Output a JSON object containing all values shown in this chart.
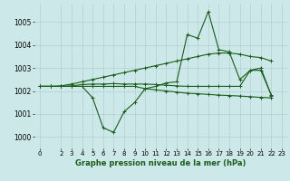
{
  "bg_color": "#cce8e8",
  "line_color": "#1a5c1a",
  "grid_color": "#b0d0d0",
  "xlabel": "Graphe pression niveau de la mer (hPa)",
  "ylim": [
    999.5,
    1005.8
  ],
  "yticks": [
    1000,
    1001,
    1002,
    1003,
    1004,
    1005
  ],
  "xticks": [
    0,
    2,
    3,
    4,
    5,
    6,
    7,
    8,
    9,
    10,
    11,
    12,
    13,
    14,
    15,
    16,
    17,
    18,
    19,
    20,
    21,
    22,
    23
  ],
  "xlim": [
    -0.5,
    23.5
  ],
  "series": [
    [
      1002.2,
      1002.2,
      1002.2,
      1002.2,
      1002.2,
      1001.7,
      1000.4,
      1000.2,
      1001.1,
      1001.5,
      1002.1,
      1002.2,
      1002.35,
      1002.4,
      1004.45,
      1004.3,
      1005.45,
      1003.8,
      1003.7,
      1002.5,
      1002.9,
      1003.0,
      1001.8
    ],
    [
      1002.2,
      1002.2,
      1002.2,
      1002.2,
      1002.2,
      1002.2,
      1002.2,
      1002.2,
      1002.2,
      1002.2,
      1002.1,
      1002.05,
      1002.0,
      1001.95,
      1001.9,
      1001.88,
      1001.85,
      1001.82,
      1001.8,
      1001.78,
      1001.75,
      1001.72,
      1001.7
    ],
    [
      1002.2,
      1002.2,
      1002.22,
      1002.3,
      1002.4,
      1002.5,
      1002.6,
      1002.7,
      1002.8,
      1002.9,
      1003.0,
      1003.1,
      1003.2,
      1003.3,
      1003.4,
      1003.5,
      1003.6,
      1003.65,
      1003.65,
      1003.6,
      1003.5,
      1003.45,
      1003.3
    ],
    [
      1002.2,
      1002.2,
      1002.2,
      1002.22,
      1002.28,
      1002.3,
      1002.3,
      1002.32,
      1002.3,
      1002.3,
      1002.3,
      1002.28,
      1002.25,
      1002.22,
      1002.2,
      1002.2,
      1002.2,
      1002.2,
      1002.2,
      1002.2,
      1002.9,
      1002.9,
      1001.82
    ]
  ],
  "marker": "+",
  "linewidth": 0.8,
  "markersize": 2.5,
  "xlabel_fontsize": 6.0,
  "tick_fontsize": 5.0
}
